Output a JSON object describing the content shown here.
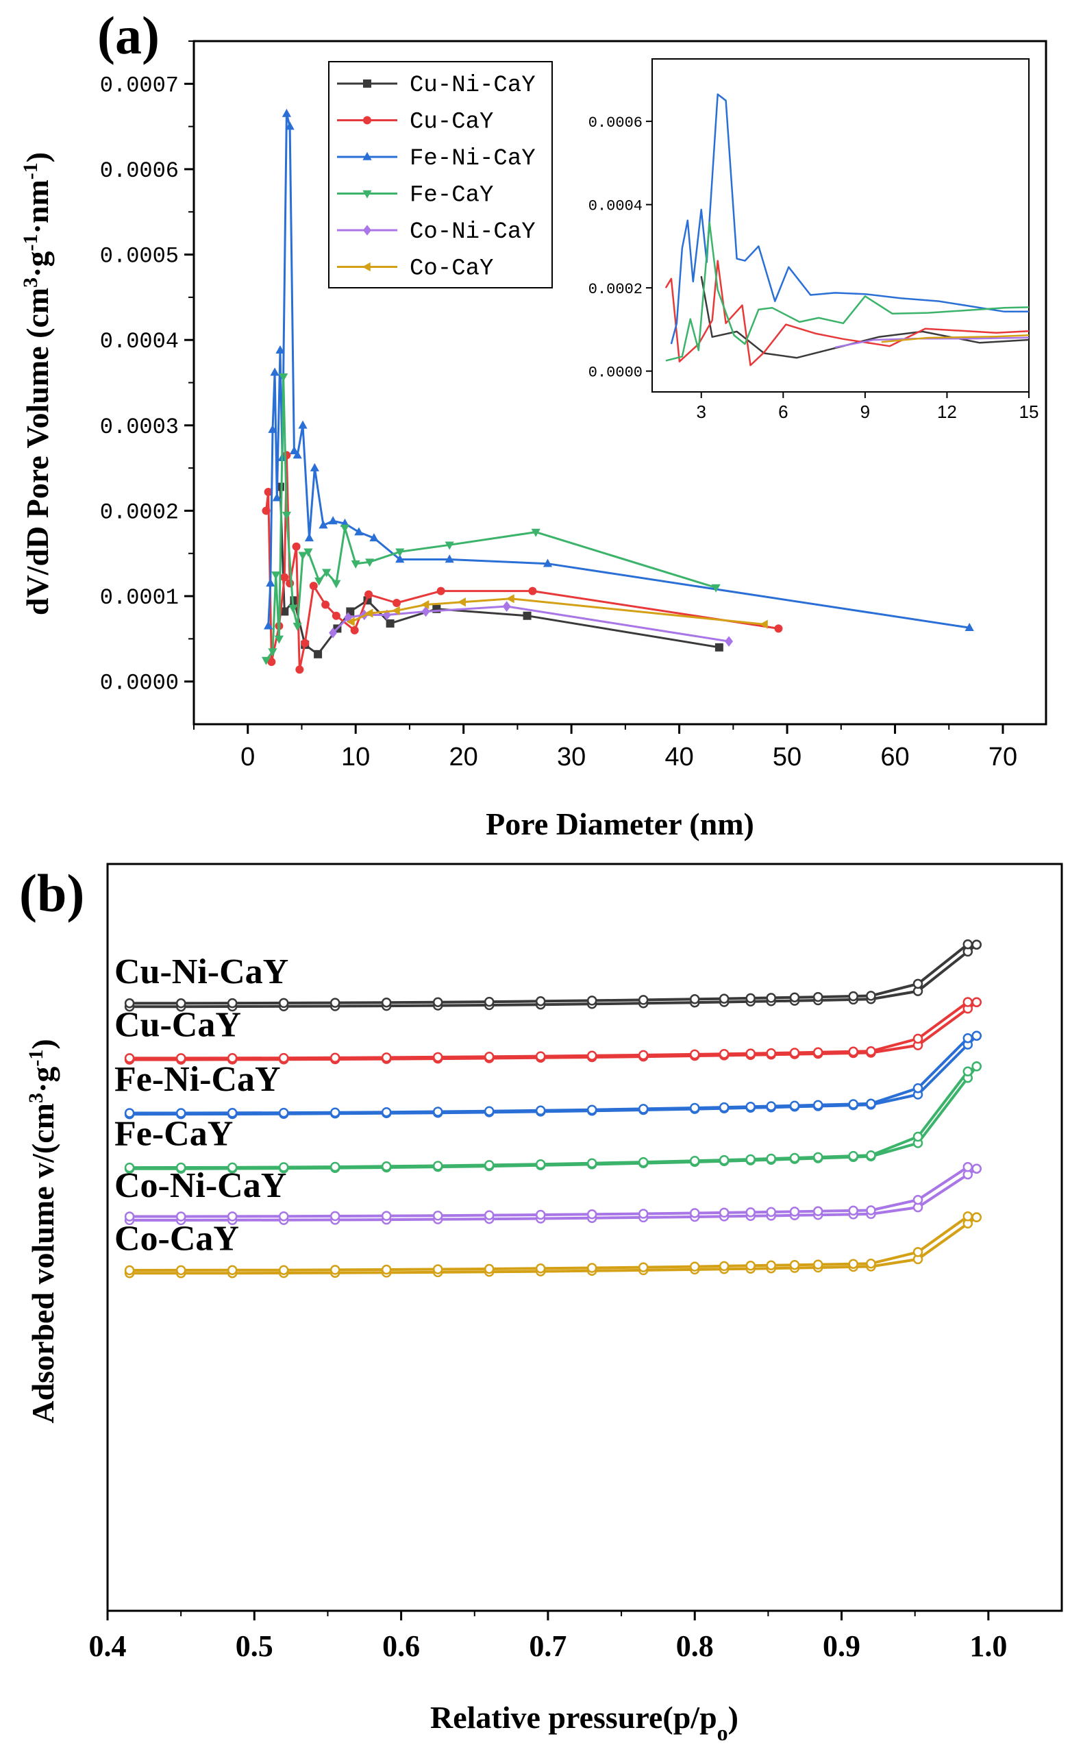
{
  "chart_data": [
    {
      "panel": "(a)",
      "type": "line",
      "xlabel": "Pore Diameter (nm)",
      "ylabel": "dV/dD Pore Volume (cm³·g⁻¹·nm⁻¹)",
      "xlim": [
        -5,
        74
      ],
      "ylim": [
        -5e-05,
        0.00075
      ],
      "x_ticks": [
        "0",
        "10",
        "20",
        "30",
        "40",
        "50",
        "60",
        "70"
      ],
      "y_ticks": [
        "0.0000",
        "0.0001",
        "0.0002",
        "0.0003",
        "0.0004",
        "0.0005",
        "0.0006",
        "0.0007"
      ],
      "legend_position": "top-center",
      "series": [
        {
          "name": "Cu-Ni-CaY",
          "color": "#3a3a3a",
          "marker": "square",
          "points": [
            [
              3.0,
              0.000228
            ],
            [
              3.4,
              8.2e-05
            ],
            [
              4.3,
              9.5e-05
            ],
            [
              5.3,
              4.3e-05
            ],
            [
              6.5,
              3.2e-05
            ],
            [
              8.3,
              6.2e-05
            ],
            [
              9.5,
              8.2e-05
            ],
            [
              11.1,
              9.5e-05
            ],
            [
              13.2,
              6.8e-05
            ],
            [
              17.5,
              8.5e-05
            ],
            [
              25.9,
              7.7e-05
            ],
            [
              43.7,
              4e-05
            ]
          ]
        },
        {
          "name": "Cu-CaY",
          "color": "#e8393a",
          "marker": "circle",
          "points": [
            [
              1.7,
              0.0002
            ],
            [
              1.9,
              0.000222
            ],
            [
              2.2,
              2.3e-05
            ],
            [
              2.9,
              6.5e-05
            ],
            [
              3.4,
              0.000122
            ],
            [
              3.6,
              0.000265
            ],
            [
              3.9,
              0.000115
            ],
            [
              4.5,
              0.000158
            ],
            [
              4.8,
              1.4e-05
            ],
            [
              5.3,
              4.5e-05
            ],
            [
              6.1,
              0.000112
            ],
            [
              7.2,
              9e-05
            ],
            [
              8.2,
              7.7e-05
            ],
            [
              9.9,
              6e-05
            ],
            [
              11.2,
              0.000102
            ],
            [
              13.8,
              9.2e-05
            ],
            [
              17.9,
              0.000106
            ],
            [
              26.4,
              0.000106
            ],
            [
              49.2,
              6.2e-05
            ]
          ]
        },
        {
          "name": "Fe-Ni-CaY",
          "color": "#2a6fd6",
          "marker": "triangle-up",
          "points": [
            [
              1.9,
              6.5e-05
            ],
            [
              2.1,
              0.000115
            ],
            [
              2.3,
              0.000295
            ],
            [
              2.5,
              0.000362
            ],
            [
              2.7,
              0.000215
            ],
            [
              3.0,
              0.000388
            ],
            [
              3.2,
              0.000262
            ],
            [
              3.6,
              0.000665
            ],
            [
              3.9,
              0.00065
            ],
            [
              4.3,
              0.00027
            ],
            [
              4.6,
              0.000265
            ],
            [
              5.1,
              0.0003
            ],
            [
              5.7,
              0.000168
            ],
            [
              6.2,
              0.00025
            ],
            [
              7.0,
              0.000183
            ],
            [
              7.9,
              0.000188
            ],
            [
              9.0,
              0.000185
            ],
            [
              10.3,
              0.000175
            ],
            [
              11.7,
              0.000168
            ],
            [
              14.1,
              0.000143
            ],
            [
              18.7,
              0.000143
            ],
            [
              27.8,
              0.000138
            ],
            [
              66.9,
              6.3e-05
            ]
          ]
        },
        {
          "name": "Fe-CaY",
          "color": "#3cb36a",
          "marker": "triangle-down",
          "points": [
            [
              1.7,
              2.5e-05
            ],
            [
              2.3,
              3.5e-05
            ],
            [
              2.6,
              0.000125
            ],
            [
              2.9,
              5e-05
            ],
            [
              3.3,
              0.000357
            ],
            [
              3.6,
              0.000195
            ],
            [
              4.2,
              8.6e-05
            ],
            [
              4.6,
              6.5e-05
            ],
            [
              5.1,
              0.000148
            ],
            [
              5.6,
              0.000152
            ],
            [
              6.6,
              0.000118
            ],
            [
              7.3,
              0.000128
            ],
            [
              8.2,
              0.000115
            ],
            [
              9.0,
              0.00018
            ],
            [
              10.0,
              0.000138
            ],
            [
              11.3,
              0.00014
            ],
            [
              14.1,
              0.000152
            ],
            [
              18.7,
              0.00016
            ],
            [
              26.7,
              0.000175
            ],
            [
              43.4,
              0.00011
            ]
          ]
        },
        {
          "name": "Co-Ni-CaY",
          "color": "#a876e6",
          "marker": "diamond",
          "points": [
            [
              7.9,
              5.7e-05
            ],
            [
              9.3,
              7.5e-05
            ],
            [
              10.8,
              7.8e-05
            ],
            [
              12.9,
              7.8e-05
            ],
            [
              16.5,
              8.2e-05
            ],
            [
              24.0,
              8.8e-05
            ],
            [
              44.6,
              4.7e-05
            ]
          ]
        },
        {
          "name": "Co-CaY",
          "color": "#d4a015",
          "marker": "triangle-left",
          "points": [
            [
              9.6,
              7e-05
            ],
            [
              11.3,
              8e-05
            ],
            [
              13.8,
              8.3e-05
            ],
            [
              16.5,
              9e-05
            ],
            [
              19.9,
              9.3e-05
            ],
            [
              24.4,
              9.7e-05
            ],
            [
              47.9,
              6.7e-05
            ]
          ]
        }
      ],
      "inset": {
        "xlim": [
          1.2,
          15
        ],
        "ylim": [
          -5e-05,
          0.00075
        ],
        "x_ticks": [
          "3",
          "6",
          "9",
          "12",
          "15"
        ],
        "y_ticks": [
          "0.0000",
          "0.0002",
          "0.0004",
          "0.0006"
        ]
      }
    },
    {
      "panel": "(b)",
      "type": "line",
      "xlabel": "Relative pressure(p/p₀)",
      "ylabel": "Adsorbed volume v/(cm³·g⁻¹)",
      "xlim": [
        0.4,
        1.05
      ],
      "ylim": [
        0,
        1
      ],
      "x_ticks": [
        "0.4",
        "0.5",
        "0.6",
        "0.7",
        "0.8",
        "0.9",
        "1.0"
      ],
      "y_ticks": [],
      "x_points": [
        0.415,
        0.45,
        0.485,
        0.52,
        0.555,
        0.59,
        0.625,
        0.66,
        0.695,
        0.73,
        0.765,
        0.8,
        0.82,
        0.838,
        0.852,
        0.868,
        0.884,
        0.908,
        0.92,
        0.952,
        0.986,
        0.992
      ],
      "series": [
        {
          "name": "Cu-Ni-CaY",
          "color": "#3a3a3a",
          "base": 0.809,
          "rise_mid": 0.013,
          "rise_top": 0.083,
          "gap": 0.0045
        },
        {
          "name": "Cu-CaY",
          "color": "#e8393a",
          "base": 0.738,
          "rise_mid": 0.02,
          "rise_top": 0.077,
          "gap": 0.002
        },
        {
          "name": "Fe-Ni-CaY",
          "color": "#2a6fd6",
          "base": 0.665,
          "rise_mid": 0.03,
          "rise_top": 0.105,
          "gap": 0.0015
        },
        {
          "name": "Fe-CaY",
          "color": "#3cb36a",
          "base": 0.592,
          "rise_mid": 0.035,
          "rise_top": 0.137,
          "gap": 0.0015
        },
        {
          "name": "Co-Ni-CaY",
          "color": "#a876e6",
          "base": 0.523,
          "rise_mid": 0.019,
          "rise_top": 0.069,
          "gap": 0.005
        },
        {
          "name": "Co-CaY",
          "color": "#d4a015",
          "base": 0.452,
          "rise_mid": 0.025,
          "rise_top": 0.075,
          "gap": 0.004
        }
      ]
    }
  ],
  "panels": {
    "a_letter": "(a)",
    "b_letter": "(b)",
    "a_xlabel": "Pore Diameter (nm)",
    "a_ylabel": "dV/dD Pore Volume (cm³·g⁻¹·nm⁻¹)",
    "b_xlabel": "Relative pressure(p/p₀)",
    "b_ylabel": "Adsorbed volume v/(cm³·g⁻¹)"
  }
}
